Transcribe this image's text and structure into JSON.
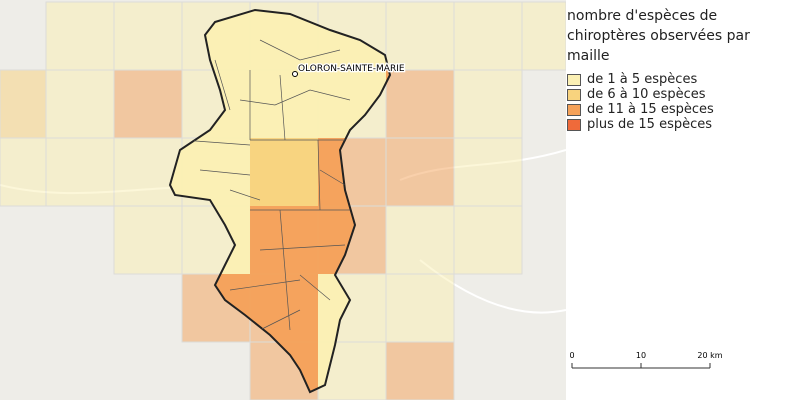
{
  "legend": {
    "title": "nombre d'espèces de chiroptères observées par maille",
    "items": [
      {
        "label": "de 1 à 5 espèces",
        "color": "#fbf0b4"
      },
      {
        "label": "de 6 à 10 espèces",
        "color": "#f8d37e"
      },
      {
        "label": "de 11 à 15 espèces",
        "color": "#f5a25a"
      },
      {
        "label": "plus de 15 espèces",
        "color": "#ef6a3a"
      }
    ]
  },
  "city": "OLORON-SAINTE-MARIE",
  "scale": {
    "labels": [
      "0",
      "10",
      "20 km"
    ]
  }
}
